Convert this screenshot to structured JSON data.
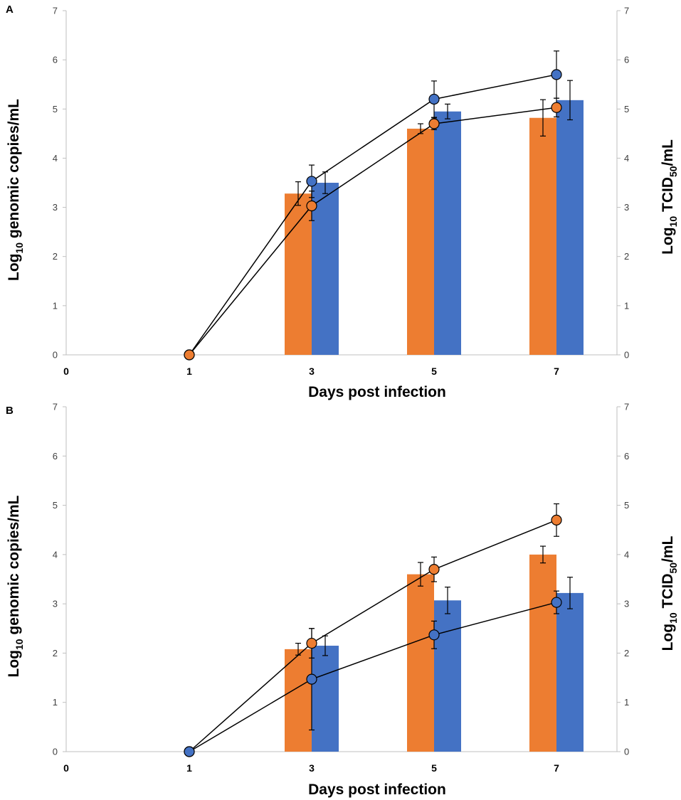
{
  "colors": {
    "orange": "#ED7D31",
    "blue": "#4472C4",
    "axis": "#bfbfbf",
    "line": "#000000"
  },
  "x_label": "Days post infection",
  "y_left_label": {
    "pre": "Log",
    "sub": "10",
    "post": "  genomic copies/mL"
  },
  "y_right_label": {
    "pre": "Log",
    "sub": "10",
    "mid": "  TCID",
    "sub2": "50",
    "post": "/mL"
  },
  "chart_data": [
    {
      "panel": "A",
      "type": "bar+line",
      "x_categories": [
        "0",
        "1",
        "3",
        "5",
        "7"
      ],
      "y_ticks": [
        "0",
        "1",
        "2",
        "3",
        "4",
        "5",
        "6",
        "7"
      ],
      "ylim": [
        0,
        7
      ],
      "bars": [
        {
          "series": "orange",
          "x": 3,
          "value": 3.28,
          "err": 0.24
        },
        {
          "series": "blue",
          "x": 3,
          "value": 3.5,
          "err": 0.22
        },
        {
          "series": "orange",
          "x": 5,
          "value": 4.6,
          "err": 0.1
        },
        {
          "series": "blue",
          "x": 5,
          "value": 4.95,
          "err": 0.15
        },
        {
          "series": "orange",
          "x": 7,
          "value": 4.82,
          "err": 0.37
        },
        {
          "series": "blue",
          "x": 7,
          "value": 5.18,
          "err": 0.4
        }
      ],
      "lines": [
        {
          "series": "blue",
          "points": [
            {
              "x": 1,
              "y": 0,
              "err": 0
            },
            {
              "x": 3,
              "y": 3.53,
              "err": 0.33
            },
            {
              "x": 5,
              "y": 5.2,
              "err": 0.37
            },
            {
              "x": 7,
              "y": 5.7,
              "err": 0.48
            }
          ]
        },
        {
          "series": "orange",
          "points": [
            {
              "x": 1,
              "y": 0,
              "err": 0
            },
            {
              "x": 3,
              "y": 3.03,
              "err": 0.3
            },
            {
              "x": 5,
              "y": 4.7,
              "err": 0.12
            },
            {
              "x": 7,
              "y": 5.03,
              "err": 0.19
            }
          ]
        }
      ]
    },
    {
      "panel": "B",
      "type": "bar+line",
      "x_categories": [
        "0",
        "1",
        "3",
        "5",
        "7"
      ],
      "y_ticks": [
        "0",
        "1",
        "2",
        "3",
        "4",
        "5",
        "6",
        "7"
      ],
      "ylim": [
        0,
        7
      ],
      "bars": [
        {
          "series": "orange",
          "x": 3,
          "value": 2.08,
          "err": 0.12
        },
        {
          "series": "blue",
          "x": 3,
          "value": 2.15,
          "err": 0.2
        },
        {
          "series": "orange",
          "x": 5,
          "value": 3.6,
          "err": 0.24
        },
        {
          "series": "blue",
          "x": 5,
          "value": 3.07,
          "err": 0.27
        },
        {
          "series": "orange",
          "x": 7,
          "value": 4.0,
          "err": 0.17
        },
        {
          "series": "blue",
          "x": 7,
          "value": 3.22,
          "err": 0.32
        }
      ],
      "lines": [
        {
          "series": "orange",
          "points": [
            {
              "x": 1,
              "y": 0,
              "err": 0
            },
            {
              "x": 3,
              "y": 2.2,
              "err": 0.3
            },
            {
              "x": 5,
              "y": 3.7,
              "err": 0.25
            },
            {
              "x": 7,
              "y": 4.7,
              "err": 0.33
            }
          ]
        },
        {
          "series": "blue",
          "points": [
            {
              "x": 1,
              "y": 0,
              "err": 0
            },
            {
              "x": 3,
              "y": 1.47,
              "err": 1.03
            },
            {
              "x": 5,
              "y": 2.37,
              "err": 0.28
            },
            {
              "x": 7,
              "y": 3.03,
              "err": 0.23
            }
          ]
        }
      ]
    }
  ]
}
